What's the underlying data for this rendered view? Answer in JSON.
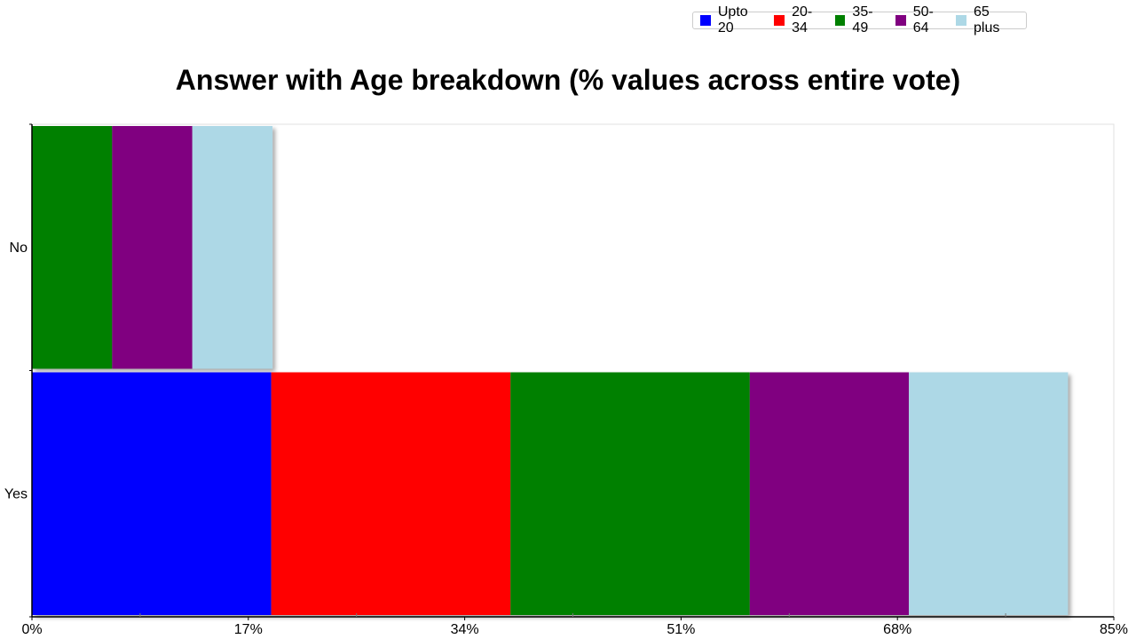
{
  "chart_data": {
    "type": "bar",
    "orientation": "horizontal",
    "stacked": true,
    "title": "Answer with Age breakdown (% values across entire vote)",
    "xlabel": "",
    "ylabel": "",
    "categories": [
      "No",
      "Yes"
    ],
    "xlim": [
      0,
      85
    ],
    "x_ticks": [
      "0%",
      "17%",
      "34%",
      "51%",
      "68%",
      "85%"
    ],
    "legend_position": "top-right",
    "grid": false,
    "series": [
      {
        "name": "Upto 20",
        "color": "#0000ff",
        "values": [
          0,
          18.8
        ]
      },
      {
        "name": "20-34",
        "color": "#ff0000",
        "values": [
          0,
          18.8
        ]
      },
      {
        "name": "35-49",
        "color": "#008000",
        "values": [
          6.3,
          18.8
        ]
      },
      {
        "name": "50-64",
        "color": "#800080",
        "values": [
          6.3,
          12.5
        ]
      },
      {
        "name": "65 plus",
        "color": "#add8e6",
        "values": [
          6.3,
          12.5
        ]
      }
    ]
  }
}
